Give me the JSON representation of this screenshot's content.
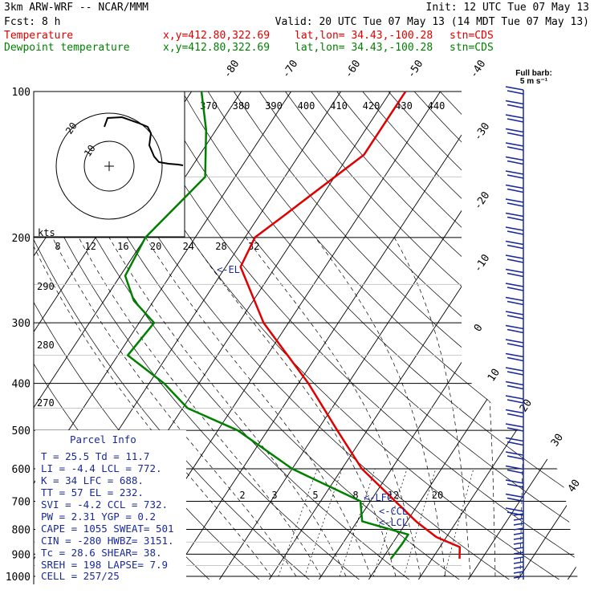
{
  "header": {
    "model": "3km ARW-WRF -- NCAR/MMM",
    "init": "Init: 12 UTC Tue 07 May 13",
    "fcst": "Fcst:     8 h",
    "valid": "Valid: 20 UTC Tue 07 May 13 (14 MDT Tue 07 May 13)",
    "temp_name": "Temperature",
    "dew_name": "Dewpoint temperature",
    "xy": "x,y=412.80,322.69",
    "latlon": "lat,lon= 34.43,-100.28",
    "stn": "stn=CDS"
  },
  "barb_scale": {
    "line1": "Full barb:",
    "line2": "5 m s⁻¹"
  },
  "hodograph": {
    "unit_label": "kts",
    "rings": [
      10,
      20
    ]
  },
  "parcel_info": {
    "title": "Parcel Info",
    "rows": [
      "T   =   25.5  Td =  11.7",
      "LI  =   -4.4  LCL =  772.",
      "K   =     34  LFC =  688.",
      "TT  =     57  EL  =  232.",
      "SVI =   -4.2  CCL =  732.",
      "PW  =   2.31  YGP =   0.2",
      "CAPE =  1055  SWEAT=  501",
      "CIN  =  -280  HWBZ= 3151.",
      "Tc  =   28.6  SHEAR=  38.",
      "SREH =   198  LAPSE=  7.9",
      "CELL = 257/25"
    ]
  },
  "level_labels": {
    "lfc": "<-LFC",
    "ccl": "<-CCL",
    "lcl": "<-LCL",
    "el": "<-EL"
  },
  "chart_data": {
    "type": "line",
    "chart_kind": "skew-T log-P sounding",
    "y_axis": {
      "label": "",
      "scale": "log pressure (hPa)",
      "ticks": [
        100,
        200,
        300,
        400,
        500,
        600,
        700,
        800,
        900,
        1000
      ]
    },
    "isotherm_labels": [
      -80,
      -70,
      -60,
      -50,
      -40,
      -30,
      -20,
      -10,
      0,
      10,
      20,
      30,
      40
    ],
    "theta_e_labels": [
      370,
      380,
      390,
      400,
      410,
      420,
      430,
      440
    ],
    "theta_labels": [
      290,
      280,
      270
    ],
    "mixing_ratio_labels_upper": [
      8,
      12,
      16,
      20,
      24,
      28,
      32
    ],
    "mixing_ratio_labels_lower": [
      2,
      3,
      5,
      8,
      12,
      20
    ],
    "series": [
      {
        "name": "Temperature",
        "color": "#e00000",
        "points": [
          [
            100,
            -47
          ],
          [
            135,
            -47
          ],
          [
            180,
            -55
          ],
          [
            200,
            -58
          ],
          [
            230,
            -57
          ],
          [
            300,
            -45
          ],
          [
            400,
            -28
          ],
          [
            500,
            -16
          ],
          [
            600,
            -6
          ],
          [
            700,
            5
          ],
          [
            772,
            12
          ],
          [
            830,
            18
          ],
          [
            870,
            24
          ],
          [
            920,
            25.5
          ]
        ]
      },
      {
        "name": "Dewpoint temperature",
        "color": "#008000",
        "points": [
          [
            100,
            -88
          ],
          [
            120,
            -82
          ],
          [
            150,
            -76
          ],
          [
            200,
            -80
          ],
          [
            240,
            -79
          ],
          [
            270,
            -74
          ],
          [
            300,
            -67
          ],
          [
            350,
            -68
          ],
          [
            400,
            -57
          ],
          [
            450,
            -49
          ],
          [
            500,
            -36
          ],
          [
            600,
            -20
          ],
          [
            700,
            -2
          ],
          [
            770,
            1
          ],
          [
            820,
            12
          ],
          [
            860,
            12
          ],
          [
            920,
            11.7
          ]
        ]
      }
    ],
    "wind_barbs": {
      "units": "m s-1",
      "count": 34
    }
  }
}
